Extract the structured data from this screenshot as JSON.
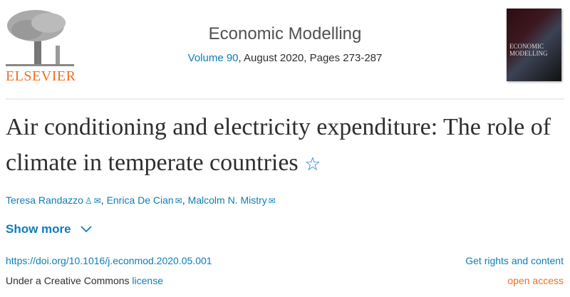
{
  "publisher": {
    "logo_text": "ELSEVIER",
    "brand_color": "#f36d21"
  },
  "journal": {
    "name": "Economic Modelling",
    "volume_link": "Volume 90",
    "issue_rest": ", August 2020, Pages 273-287",
    "cover_text": "ECONOMIC MODELLING"
  },
  "article": {
    "title": "Air conditioning and electricity expenditure: The role of climate in temperate countries",
    "star_icon": "star-outline-icon",
    "authors": [
      {
        "name": "Teresa Randazzo",
        "icons": [
          "person-icon",
          "envelope-icon"
        ]
      },
      {
        "name": "Enrica De Cian",
        "icons": [
          "envelope-icon"
        ]
      },
      {
        "name": "Malcolm N. Mistry",
        "icons": [
          "envelope-icon"
        ]
      }
    ],
    "show_more": "Show more",
    "doi": "https://doi.org/10.1016/j.econmod.2020.05.001",
    "rights": "Get rights and content",
    "license_prefix": "Under a Creative Commons ",
    "license_link": "license",
    "access": "open access"
  },
  "colors": {
    "link": "#0c7dbb",
    "accent": "#f36d21",
    "text": "#2e2e2e"
  }
}
